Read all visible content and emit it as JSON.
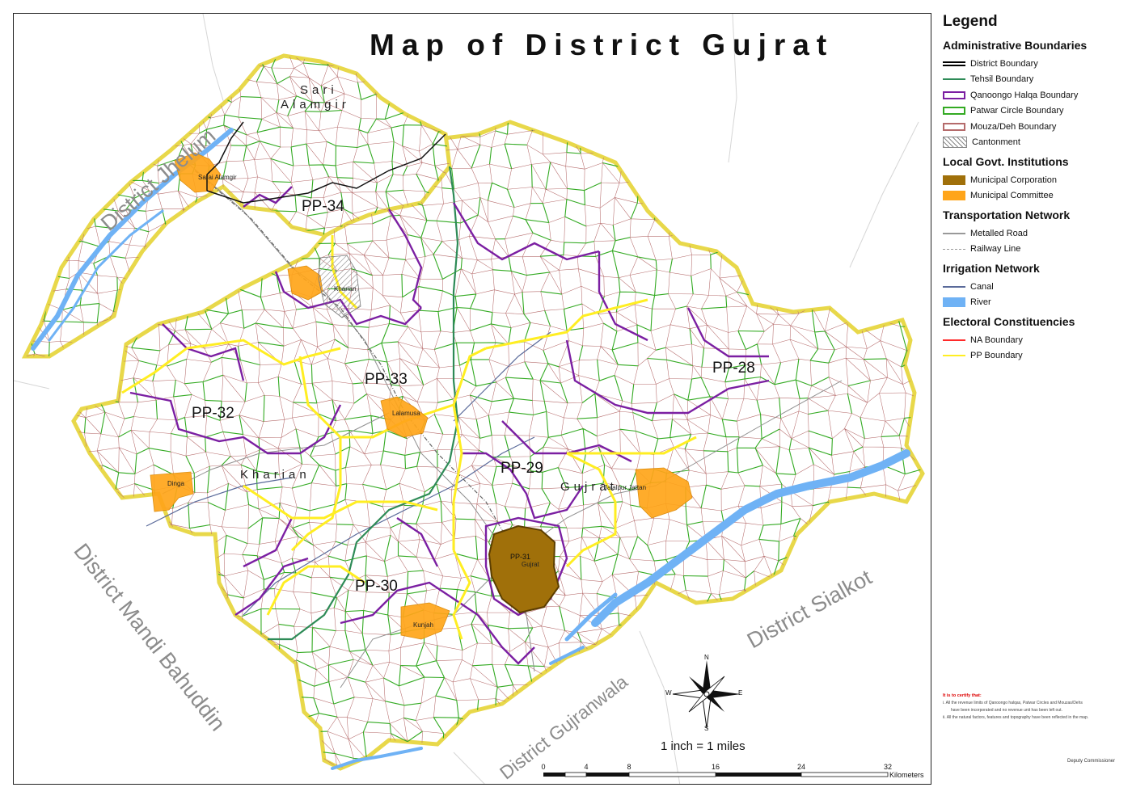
{
  "title": "Map of District Gujrat",
  "surrounding_districts": {
    "jhelum": "District Jhelum",
    "mandi_bahauddin": "District Mandi Bahuddin",
    "gujranwala": "District Gujranwala",
    "sialkot": "District Sialkot"
  },
  "constituencies": [
    "PP-28",
    "PP-29",
    "PP-30",
    "PP-31",
    "PP-32",
    "PP-33",
    "PP-34"
  ],
  "tehsils": {
    "sarai_line1": "Sari",
    "sarai_line2": "Alamgir",
    "kharian": "Kharian",
    "gujrat": "Gujrat"
  },
  "towns": {
    "sarai_alamgir": "Sarai Alamgir",
    "kharian": "Kharian",
    "lalamusa": "Lalamusa",
    "dinga": "Dinga",
    "jalalpur_jattan": "Jalalpur Jattan",
    "kunjah": "Kunjah",
    "gujrat_city": "Gujrat"
  },
  "compass": {
    "n": "N",
    "s": "S",
    "e": "E",
    "w": "W"
  },
  "scale": {
    "text": "1 inch = 1 miles",
    "ticks": [
      "0",
      "4",
      "8",
      "16",
      "24",
      "32"
    ],
    "unit": "Kilometers"
  },
  "legend": {
    "title": "Legend",
    "sections": [
      {
        "title": "Administrative Boundaries",
        "items": [
          {
            "label": "District Boundary",
            "symbol": "double-line",
            "color": "#000000"
          },
          {
            "label": "Tehsil Boundary",
            "symbol": "line",
            "color": "#2e8b57"
          },
          {
            "label": "Qanoongo Halqa Boundary",
            "symbol": "box",
            "color": "#7b1fa2"
          },
          {
            "label": "Patwar Circle Boundary",
            "symbol": "box",
            "color": "#33aa22"
          },
          {
            "label": "Mouza/Deh Boundary",
            "symbol": "box",
            "color": "#b56b6b"
          },
          {
            "label": "Cantonment",
            "symbol": "hatch",
            "color": "#888888"
          }
        ]
      },
      {
        "title": "Local Govt. Institutions",
        "items": [
          {
            "label": "Municipal Corporation",
            "symbol": "fill",
            "color": "#a0700a"
          },
          {
            "label": "Municipal Committee",
            "symbol": "fill",
            "color": "#ffa51a"
          }
        ]
      },
      {
        "title": "Transportation Network",
        "items": [
          {
            "label": "Metalled Road",
            "symbol": "line",
            "color": "#999999"
          },
          {
            "label": "Railway Line",
            "symbol": "dash",
            "color": "#999999"
          }
        ]
      },
      {
        "title": "Irrigation Network",
        "items": [
          {
            "label": "Canal",
            "symbol": "line",
            "color": "#5a6a9a"
          },
          {
            "label": "River",
            "symbol": "fill",
            "color": "#6fb2f5"
          }
        ]
      },
      {
        "title": "Electoral Constituencies",
        "items": [
          {
            "label": "NA Boundary",
            "symbol": "line",
            "color": "#ff2a2a"
          },
          {
            "label": "PP Boundary",
            "symbol": "line",
            "color": "#ffee22"
          }
        ]
      }
    ]
  },
  "certification": {
    "title": "It is to certify that:",
    "lines": [
      "i.  All the revenue limits of Qanoongo halqas, Patwar Circles and Mouzas/Dehs",
      "have been incorporated and no revenue unit has been left out.",
      "ii. All the natural factors, features and topography have been reflected in the map."
    ]
  },
  "signature": "Deputy Commissioner",
  "colors": {
    "district_fill": "#ffffff",
    "district_outline": "#e8d84a",
    "qanoongo": "#7b1fa2",
    "patwar": "#33aa22",
    "mouza": "#b56b6b",
    "river": "#6fb2f5",
    "municipal_committee": "#ffa51a",
    "municipal_corporation": "#a0700a"
  }
}
